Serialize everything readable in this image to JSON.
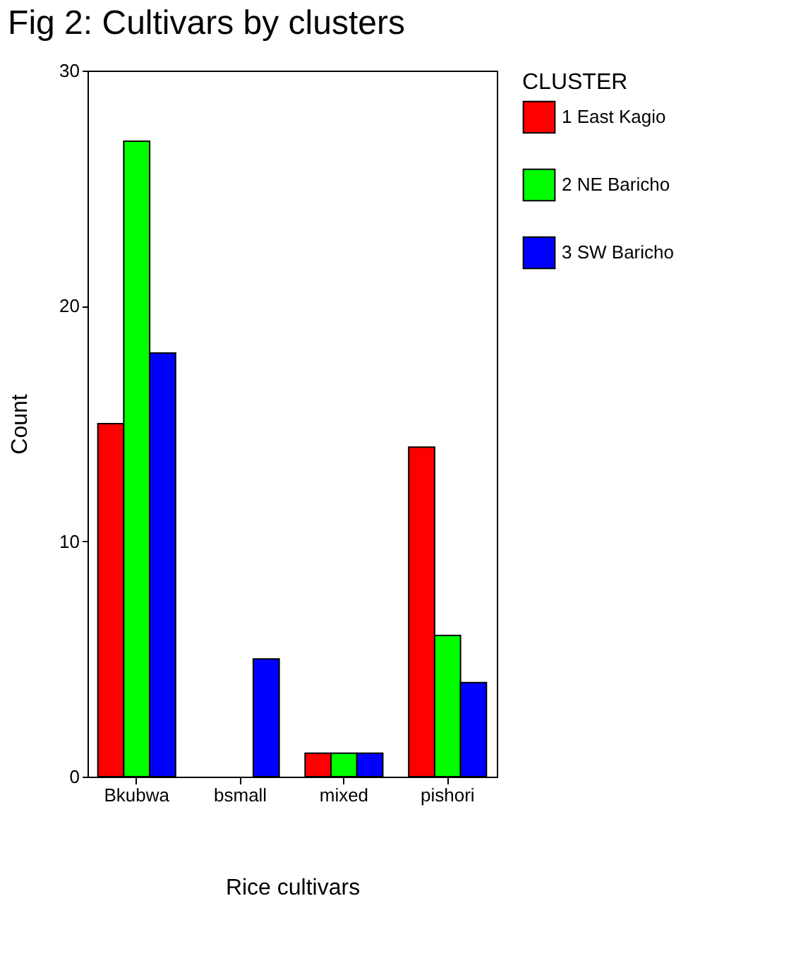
{
  "chart_data": {
    "type": "bar",
    "title": "Fig 2: Cultivars by clusters",
    "xlabel": "Rice cultivars",
    "ylabel": "Count",
    "legend_title": "CLUSTER",
    "legend": "right",
    "categories": [
      "Bkubwa",
      "bsmall",
      "mixed",
      "pishori"
    ],
    "series": [
      {
        "name": "1 East Kagio",
        "color": "#ff0000",
        "values": [
          15,
          0,
          1,
          14
        ]
      },
      {
        "name": "2 NE Baricho",
        "color": "#00ff00",
        "values": [
          27,
          0,
          1,
          6
        ]
      },
      {
        "name": "3 SW Baricho",
        "color": "#0000ff",
        "values": [
          18,
          5,
          1,
          4
        ]
      }
    ],
    "ylim": [
      0,
      30
    ],
    "yticks": [
      0,
      10,
      20,
      30
    ],
    "grid": false
  }
}
